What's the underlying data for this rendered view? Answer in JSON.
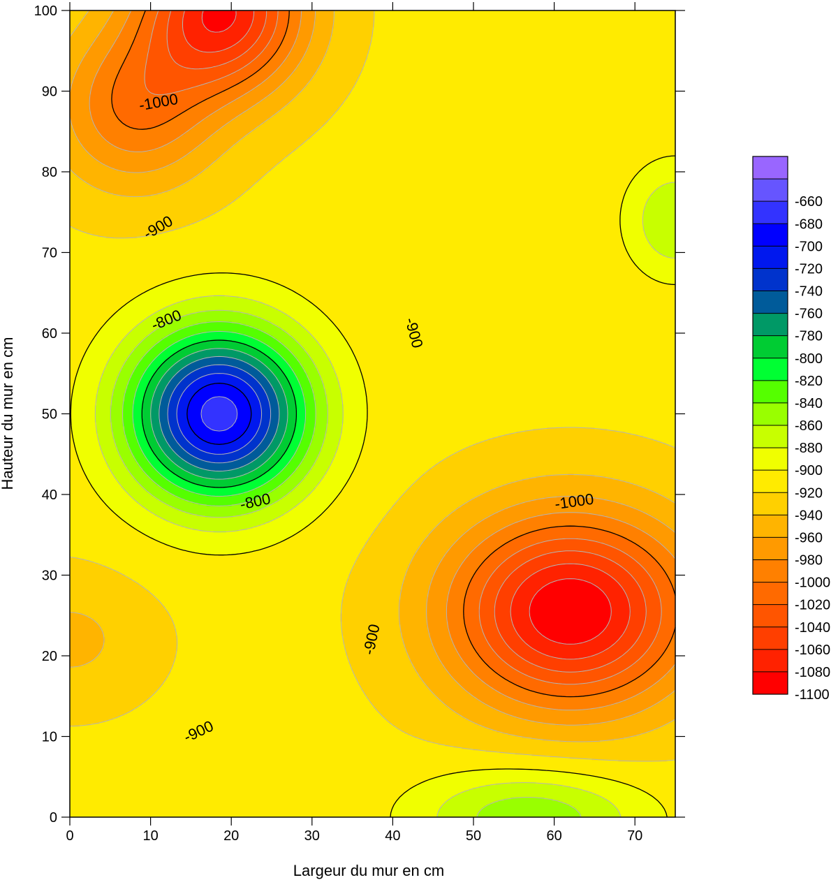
{
  "chart_data": {
    "type": "heatmap",
    "subtype": "filled-contour",
    "xlabel": "Largeur du mur en cm",
    "ylabel": "Hauteur du mur en cm",
    "xlim": [
      0,
      75
    ],
    "ylim": [
      0,
      100
    ],
    "x_ticks": [
      0,
      10,
      20,
      30,
      40,
      50,
      60,
      70
    ],
    "y_ticks": [
      0,
      10,
      20,
      30,
      40,
      50,
      60,
      70,
      80,
      90,
      100
    ],
    "contour_interval": 20,
    "labeled_contours": [
      {
        "text": "-1000",
        "value": -1000,
        "x": 11,
        "y": 88.5,
        "angle": -10
      },
      {
        "text": "-900",
        "value": -900,
        "x": 11,
        "y": 73,
        "angle": -30
      },
      {
        "text": "-800",
        "value": -800,
        "x": 12,
        "y": 61.5,
        "angle": -22
      },
      {
        "text": "-800",
        "value": -800,
        "x": 23,
        "y": 39,
        "angle": -12
      },
      {
        "text": "-900",
        "value": -900,
        "x": 42.5,
        "y": 60,
        "angle": 75
      },
      {
        "text": "-1000",
        "value": -1000,
        "x": 62.5,
        "y": 39,
        "angle": -8
      },
      {
        "text": "-900",
        "value": -900,
        "x": 37.5,
        "y": 22,
        "angle": -78
      },
      {
        "text": "-900",
        "value": -900,
        "x": 16,
        "y": 10.5,
        "angle": -25
      }
    ],
    "field_features": [
      {
        "kind": "minimum",
        "x": 18.5,
        "y": 50,
        "value": -670,
        "radius": [
          11,
          10.5
        ]
      },
      {
        "kind": "maximum",
        "x": 62,
        "y": 25.5,
        "value": -1100,
        "radius": [
          15,
          12
        ]
      },
      {
        "kind": "maximum",
        "x": 19,
        "y": 100,
        "value": -1080,
        "radius": [
          10,
          10
        ]
      },
      {
        "kind": "maximum",
        "x": 8,
        "y": 88,
        "value": -1000,
        "radius": [
          10,
          10
        ]
      },
      {
        "kind": "minimum",
        "x": 75,
        "y": 74,
        "value": -860,
        "radius": [
          6,
          7
        ]
      },
      {
        "kind": "minimum",
        "x": 57,
        "y": 0,
        "value": -845,
        "radius": [
          14,
          6
        ]
      },
      {
        "kind": "maximum",
        "x": 0,
        "y": 22,
        "value": -945,
        "radius": [
          10,
          8
        ]
      }
    ],
    "legend": {
      "placement": "right",
      "levels": [
        -1100,
        -1080,
        -1060,
        -1040,
        -1020,
        -1000,
        -980,
        -960,
        -940,
        -920,
        -900,
        -880,
        -860,
        -840,
        -820,
        -800,
        -780,
        -760,
        -740,
        -720,
        -700,
        -680,
        -660,
        -640
      ],
      "tick_labels": [
        "-660",
        "-680",
        "-700",
        "-720",
        "-740",
        "-760",
        "-780",
        "-800",
        "-820",
        "-840",
        "-860",
        "-880",
        "-900",
        "-920",
        "-940",
        "-960",
        "-980",
        "-1000",
        "-1020",
        "-1040",
        "-1060",
        "-1080",
        "-1100"
      ],
      "colors": [
        "#ff0000",
        "#ff2200",
        "#ff3f00",
        "#ff5500",
        "#ff6a00",
        "#ff8000",
        "#ff9a00",
        "#ffb400",
        "#ffd000",
        "#ffeb00",
        "#f0ff00",
        "#c8ff00",
        "#99ff00",
        "#55ff00",
        "#00ff33",
        "#00cc33",
        "#009966",
        "#005b9a",
        "#0033cc",
        "#0018ee",
        "#0000ff",
        "#3333ff",
        "#6655ff",
        "#9966ff"
      ]
    },
    "colors": {
      "contour_major": "#000000",
      "contour_minor": "#b4b4b4",
      "axis": "#000000"
    }
  }
}
